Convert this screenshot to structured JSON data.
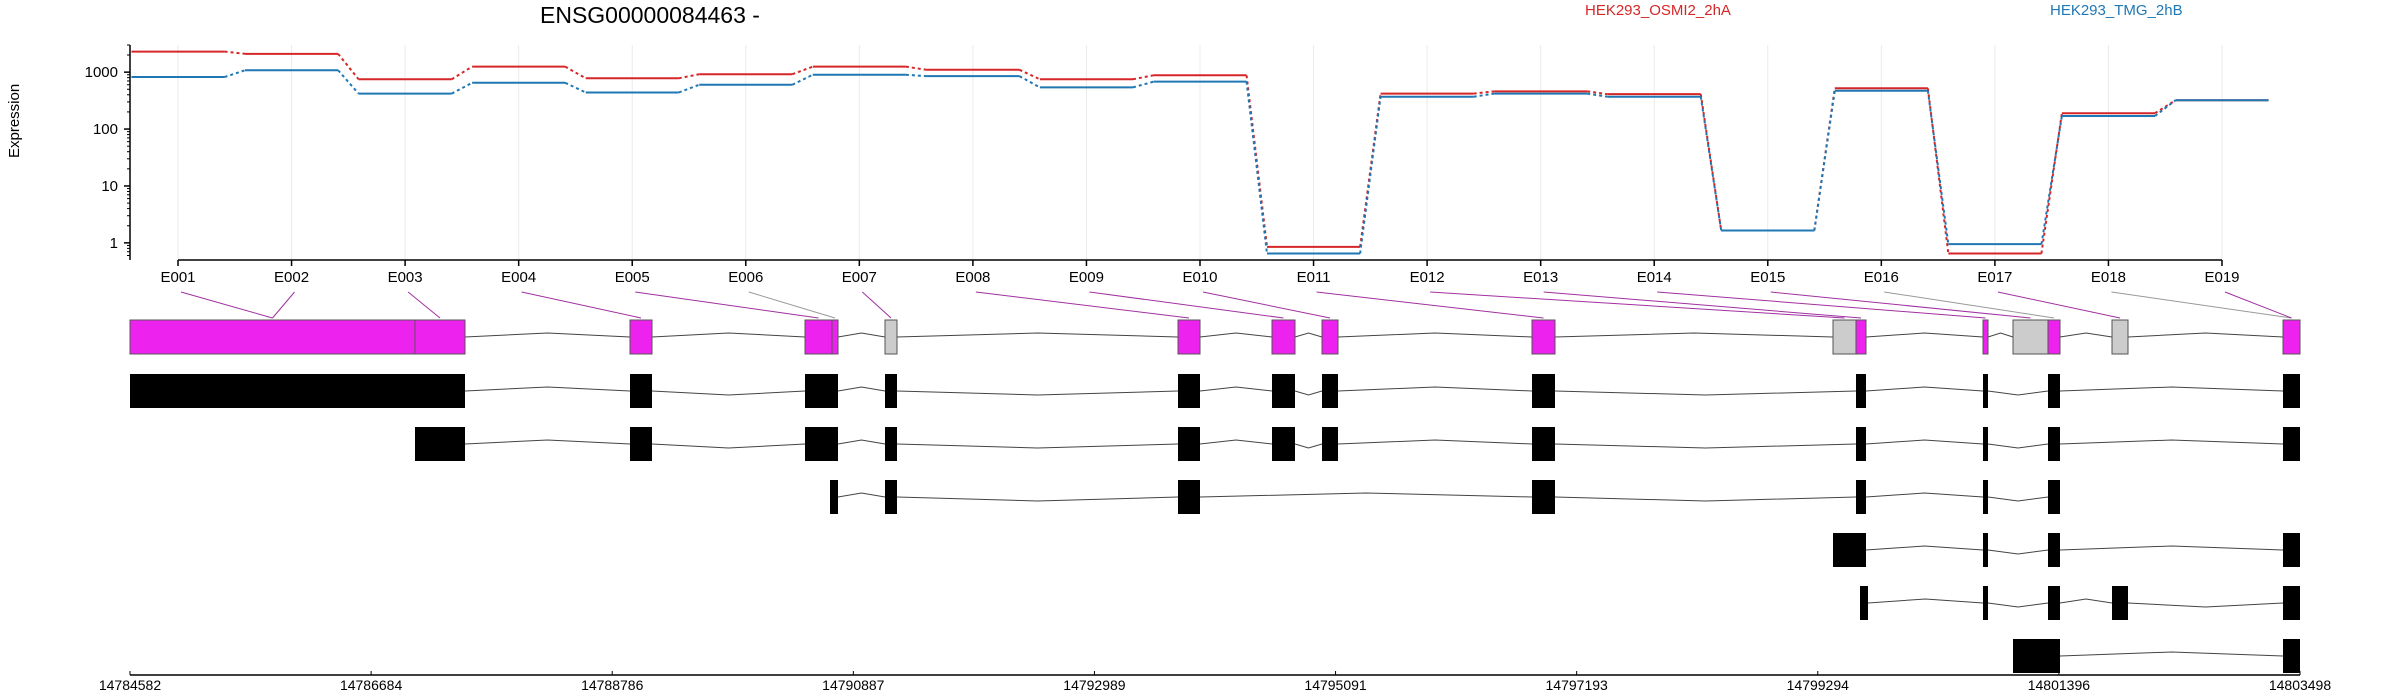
{
  "chart_data": {
    "type": "line",
    "title": "ENSG00000084463 -",
    "ylabel": "Expression",
    "yscale": "log",
    "ylim": [
      0.5,
      3000
    ],
    "yticks": [
      1,
      10,
      100,
      1000
    ],
    "yticklabels": [
      "1",
      "10",
      "100",
      "1000"
    ],
    "categories": [
      "E001",
      "E002",
      "E003",
      "E004",
      "E005",
      "E006",
      "E007",
      "E008",
      "E009",
      "E010",
      "E011",
      "E012",
      "E013",
      "E014",
      "E015",
      "E016",
      "E017",
      "E018",
      "E019"
    ],
    "legend_placement": "top",
    "grid": true,
    "series": [
      {
        "name": "HEK293_OSMI2_2hA",
        "color": "#d62728",
        "values": [
          2300,
          2100,
          750,
          1250,
          780,
          920,
          1250,
          1100,
          750,
          880,
          0.85,
          420,
          460,
          410,
          1.65,
          520,
          0.65,
          190,
          320
        ]
      },
      {
        "name": "HEK293_TMG_2hB",
        "color": "#1f77b4",
        "values": [
          820,
          1080,
          420,
          650,
          440,
          600,
          900,
          850,
          540,
          680,
          0.65,
          370,
          420,
          370,
          1.65,
          470,
          0.95,
          170,
          320
        ]
      }
    ],
    "genome_coords": [
      "14784582",
      "14786684",
      "14788786",
      "14790887",
      "14792989",
      "14795091",
      "14797193",
      "14799294",
      "14801396",
      "14803498"
    ],
    "exon_colors": {
      "expressed": "#ee22ee",
      "not_expressed": "#cccccc",
      "transcript": "#000000"
    }
  }
}
